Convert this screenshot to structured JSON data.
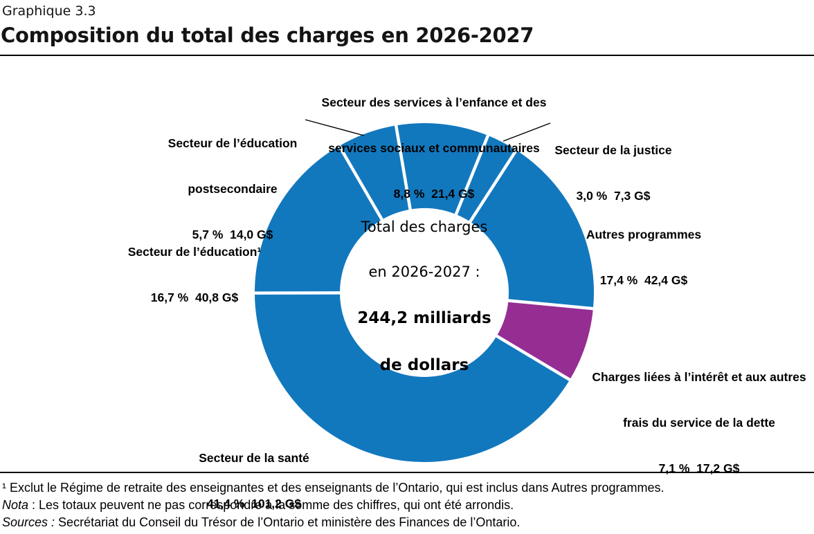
{
  "header": {
    "eyebrow": "Graphique 3.3",
    "title": "Composition du total des charges en 2026-2027"
  },
  "chart_data": {
    "type": "pie",
    "subtype": "donut",
    "unit": "G$",
    "start_bearing_deg": -9.6,
    "colors": {
      "primary": "#1278BE",
      "accent": "#962D93"
    },
    "total": {
      "value": 244.2,
      "label_lines": [
        "Total des charges",
        "en 2026-2027 :"
      ],
      "value_lines": [
        "244,2 milliards",
        "de dollars"
      ]
    },
    "segments": [
      {
        "id": "enfance",
        "name": "Secteur des services à l’enfance et des services sociaux et communautaires",
        "pct": 8.8,
        "value": 21.4,
        "color": "#1278BE"
      },
      {
        "id": "justice",
        "name": "Secteur de la justice",
        "pct": 3.0,
        "value": 7.3,
        "color": "#1278BE"
      },
      {
        "id": "autres-programmes",
        "name": "Autres programmes",
        "pct": 17.4,
        "value": 42.4,
        "color": "#1278BE"
      },
      {
        "id": "interet-dette",
        "name": "Charges liées à l’intérêt et aux autres frais du service de la dette",
        "pct": 7.1,
        "value": 17.2,
        "color": "#962D93"
      },
      {
        "id": "sante",
        "name": "Secteur de la santé",
        "pct": 41.4,
        "value": 101.2,
        "color": "#1278BE"
      },
      {
        "id": "education",
        "name": "Secteur de l’éducation¹",
        "pct": 16.7,
        "value": 40.8,
        "color": "#1278BE"
      },
      {
        "id": "postsecondaire",
        "name": "Secteur de l’éducation postsecondaire",
        "pct": 5.7,
        "value": 14.0,
        "color": "#1278BE"
      }
    ]
  },
  "callouts": {
    "enfance": {
      "lines": [
        "Secteur des services à l’enfance et des",
        "services sociaux et communautaires",
        "8,8 %  21,4 G$"
      ]
    },
    "postsecondaire": {
      "lines": [
        "Secteur de l’éducation",
        "postsecondaire",
        "5,7 %  14,0 G$"
      ]
    },
    "justice": {
      "lines": [
        "Secteur de la justice",
        "3,0 %  7,3 G$"
      ]
    },
    "education": {
      "lines": [
        "Secteur de l’éducation¹",
        "16,7 %  40,8 G$"
      ]
    },
    "autres": {
      "lines": [
        "Autres programmes",
        "17,4 %  42,4 G$"
      ]
    },
    "interet": {
      "lines": [
        "Charges liées à l’intérêt et aux autres",
        "frais du service de la dette",
        "7,1 %  17,2 G$"
      ]
    },
    "sante": {
      "lines": [
        "Secteur de la santé",
        "41,4 %  101,2 G$"
      ]
    }
  },
  "footnotes": {
    "note1": "¹ Exclut le Régime de retraite des enseignantes et des enseignants de l’Ontario, qui est inclus dans Autres programmes.",
    "nota_label": "Nota",
    "nota_text": " : Les totaux peuvent ne pas correspondre à la somme des chiffres, qui ont été arrondis.",
    "sources_label": "Sources :",
    "sources_text": " Secrétariat du Conseil du Trésor de l’Ontario et ministère des Finances de l’Ontario."
  }
}
